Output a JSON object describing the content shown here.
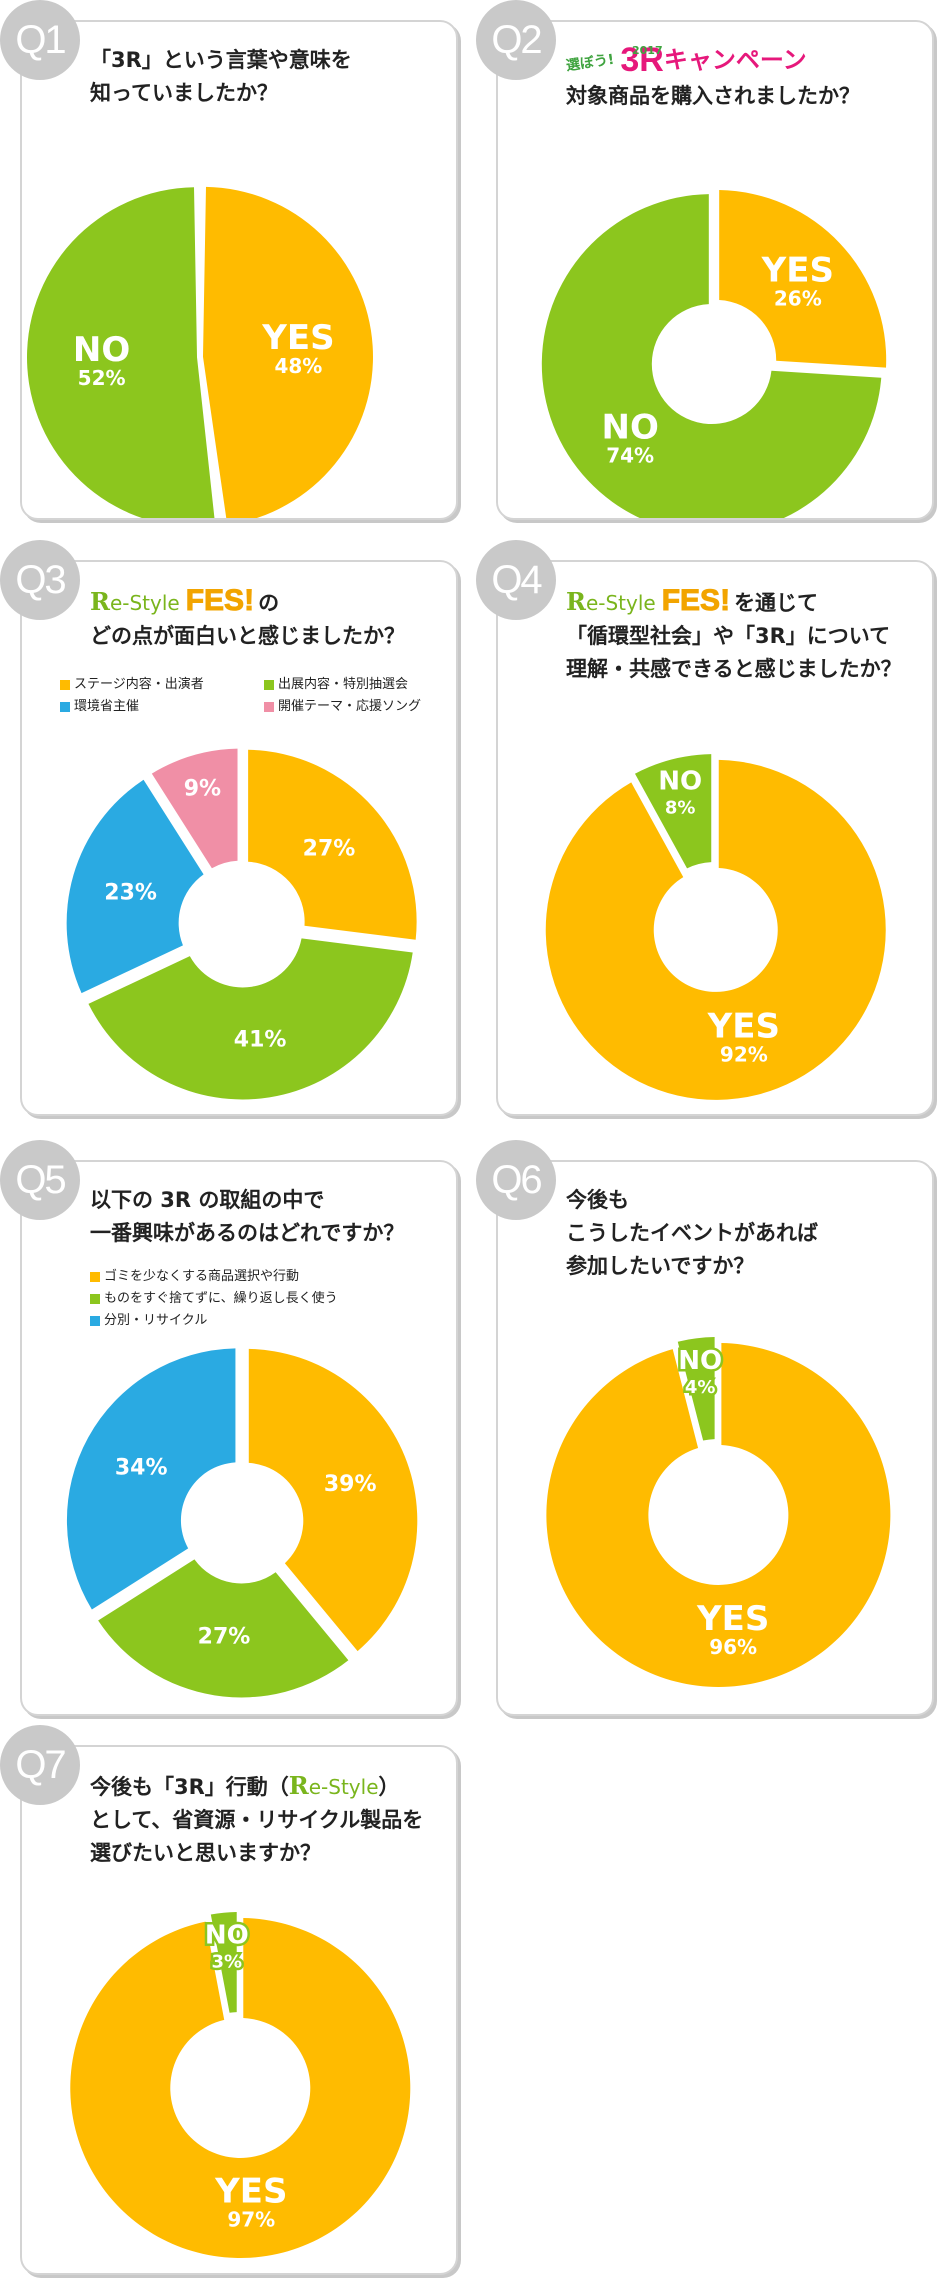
{
  "colors": {
    "yes": "#ffbb00",
    "no": "#8cc61e",
    "blue": "#2aaae2",
    "pink": "#f08fa6",
    "badge": "#c9c9c9"
  },
  "brand": {
    "re_style_mark": "R",
    "re_style_text": "e-Style",
    "fes_text": "FES!",
    "campaign_pick": "選ぼう!",
    "campaign_year": "2017",
    "campaign_big": "3R",
    "campaign_kata": "キャンペーン"
  },
  "q1": {
    "badge": "Q1",
    "question_lines": [
      "「3R」という言葉や意味を",
      "知っていましたか？"
    ],
    "chart_data": {
      "type": "pie",
      "labels": [
        "YES",
        "NO"
      ],
      "values": [
        48,
        52
      ],
      "value_labels": [
        "48%",
        "52%"
      ],
      "colors": [
        "#ffbb00",
        "#8cc61e"
      ]
    }
  },
  "q2": {
    "badge": "Q2",
    "question_lines": [
      "対象商品を購入されましたか？"
    ],
    "chart_data": {
      "type": "pie",
      "labels": [
        "YES",
        "NO"
      ],
      "values": [
        26,
        74
      ],
      "value_labels": [
        "26%",
        "74%"
      ],
      "colors": [
        "#ffbb00",
        "#8cc61e"
      ]
    }
  },
  "q3": {
    "badge": "Q3",
    "question_suffix": "の",
    "question_lines": [
      "どの点が面白いと感じましたか？"
    ],
    "legend": [
      "ステージ内容・出演者",
      "出展内容・特別抽選会",
      "環境省主催",
      "開催テーマ・応援ソング"
    ],
    "chart_data": {
      "type": "pie",
      "labels": [
        "ステージ内容・出演者",
        "出展内容・特別抽選会",
        "環境省主催",
        "開催テーマ・応援ソング"
      ],
      "values": [
        27,
        41,
        23,
        9
      ],
      "value_labels": [
        "27%",
        "41%",
        "23%",
        "9%"
      ],
      "colors": [
        "#ffbb00",
        "#8cc61e",
        "#2aaae2",
        "#f08fa6"
      ]
    }
  },
  "q4": {
    "badge": "Q4",
    "question_suffix": "を通じて",
    "question_lines": [
      "「循環型社会」や「3R」について",
      "理解・共感できると感じましたか？"
    ],
    "chart_data": {
      "type": "pie",
      "labels": [
        "YES",
        "NO"
      ],
      "values": [
        92,
        8
      ],
      "value_labels": [
        "92%",
        "8%"
      ],
      "colors": [
        "#ffbb00",
        "#8cc61e"
      ]
    }
  },
  "q5": {
    "badge": "Q5",
    "question_lines": [
      "以下の 3R の取組の中で",
      "一番興味があるのはどれですか？"
    ],
    "legend": [
      "ゴミを少なくする商品選択や行動",
      "ものをすぐ捨てずに、繰り返し長く使う",
      "分別・リサイクル"
    ],
    "chart_data": {
      "type": "pie",
      "labels": [
        "ゴミを少なくする商品選択や行動",
        "ものをすぐ捨てずに、繰り返し長く使う",
        "分別・リサイクル"
      ],
      "values": [
        39,
        27,
        34
      ],
      "value_labels": [
        "39%",
        "27%",
        "34%"
      ],
      "colors": [
        "#ffbb00",
        "#8cc61e",
        "#2aaae2"
      ]
    }
  },
  "q6": {
    "badge": "Q6",
    "question_lines": [
      "今後も",
      "こうしたイベントがあれば",
      "参加したいですか？"
    ],
    "chart_data": {
      "type": "pie",
      "labels": [
        "YES",
        "NO"
      ],
      "values": [
        96,
        4
      ],
      "value_labels": [
        "96%",
        "4%"
      ],
      "colors": [
        "#ffbb00",
        "#8cc61e"
      ]
    }
  },
  "q7": {
    "badge": "Q7",
    "question_prefix": "今後も「3R」行動（",
    "question_close": "）",
    "question_lines": [
      "として、省資源・リサイクル製品を",
      "選びたいと思いますか？"
    ],
    "chart_data": {
      "type": "pie",
      "labels": [
        "YES",
        "NO"
      ],
      "values": [
        97,
        3
      ],
      "value_labels": [
        "97%",
        "3%"
      ],
      "colors": [
        "#ffbb00",
        "#8cc61e"
      ]
    }
  }
}
